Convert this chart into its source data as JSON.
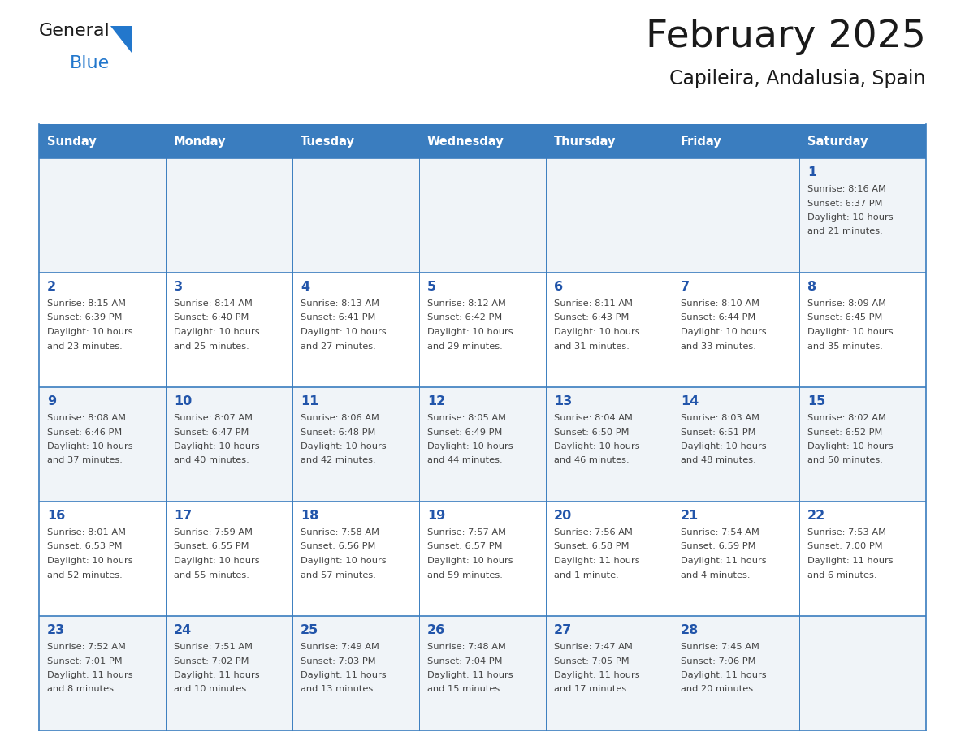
{
  "title": "February 2025",
  "subtitle": "Capileira, Andalusia, Spain",
  "header_bg": "#3a7dbf",
  "header_text_color": "#ffffff",
  "cell_bg_odd": "#f0f4f8",
  "cell_bg_even": "#ffffff",
  "grid_color": "#3a7dbf",
  "day_num_color": "#2255aa",
  "text_color": "#444444",
  "days_of_week": [
    "Sunday",
    "Monday",
    "Tuesday",
    "Wednesday",
    "Thursday",
    "Friday",
    "Saturday"
  ],
  "calendar_data": [
    [
      null,
      null,
      null,
      null,
      null,
      null,
      {
        "day": 1,
        "sunrise": "8:16 AM",
        "sunset": "6:37 PM",
        "daylight": "10 hours",
        "daylight2": "and 21 minutes."
      }
    ],
    [
      {
        "day": 2,
        "sunrise": "8:15 AM",
        "sunset": "6:39 PM",
        "daylight": "10 hours",
        "daylight2": "and 23 minutes."
      },
      {
        "day": 3,
        "sunrise": "8:14 AM",
        "sunset": "6:40 PM",
        "daylight": "10 hours",
        "daylight2": "and 25 minutes."
      },
      {
        "day": 4,
        "sunrise": "8:13 AM",
        "sunset": "6:41 PM",
        "daylight": "10 hours",
        "daylight2": "and 27 minutes."
      },
      {
        "day": 5,
        "sunrise": "8:12 AM",
        "sunset": "6:42 PM",
        "daylight": "10 hours",
        "daylight2": "and 29 minutes."
      },
      {
        "day": 6,
        "sunrise": "8:11 AM",
        "sunset": "6:43 PM",
        "daylight": "10 hours",
        "daylight2": "and 31 minutes."
      },
      {
        "day": 7,
        "sunrise": "8:10 AM",
        "sunset": "6:44 PM",
        "daylight": "10 hours",
        "daylight2": "and 33 minutes."
      },
      {
        "day": 8,
        "sunrise": "8:09 AM",
        "sunset": "6:45 PM",
        "daylight": "10 hours",
        "daylight2": "and 35 minutes."
      }
    ],
    [
      {
        "day": 9,
        "sunrise": "8:08 AM",
        "sunset": "6:46 PM",
        "daylight": "10 hours",
        "daylight2": "and 37 minutes."
      },
      {
        "day": 10,
        "sunrise": "8:07 AM",
        "sunset": "6:47 PM",
        "daylight": "10 hours",
        "daylight2": "and 40 minutes."
      },
      {
        "day": 11,
        "sunrise": "8:06 AM",
        "sunset": "6:48 PM",
        "daylight": "10 hours",
        "daylight2": "and 42 minutes."
      },
      {
        "day": 12,
        "sunrise": "8:05 AM",
        "sunset": "6:49 PM",
        "daylight": "10 hours",
        "daylight2": "and 44 minutes."
      },
      {
        "day": 13,
        "sunrise": "8:04 AM",
        "sunset": "6:50 PM",
        "daylight": "10 hours",
        "daylight2": "and 46 minutes."
      },
      {
        "day": 14,
        "sunrise": "8:03 AM",
        "sunset": "6:51 PM",
        "daylight": "10 hours",
        "daylight2": "and 48 minutes."
      },
      {
        "day": 15,
        "sunrise": "8:02 AM",
        "sunset": "6:52 PM",
        "daylight": "10 hours",
        "daylight2": "and 50 minutes."
      }
    ],
    [
      {
        "day": 16,
        "sunrise": "8:01 AM",
        "sunset": "6:53 PM",
        "daylight": "10 hours",
        "daylight2": "and 52 minutes."
      },
      {
        "day": 17,
        "sunrise": "7:59 AM",
        "sunset": "6:55 PM",
        "daylight": "10 hours",
        "daylight2": "and 55 minutes."
      },
      {
        "day": 18,
        "sunrise": "7:58 AM",
        "sunset": "6:56 PM",
        "daylight": "10 hours",
        "daylight2": "and 57 minutes."
      },
      {
        "day": 19,
        "sunrise": "7:57 AM",
        "sunset": "6:57 PM",
        "daylight": "10 hours",
        "daylight2": "and 59 minutes."
      },
      {
        "day": 20,
        "sunrise": "7:56 AM",
        "sunset": "6:58 PM",
        "daylight": "11 hours",
        "daylight2": "and 1 minute."
      },
      {
        "day": 21,
        "sunrise": "7:54 AM",
        "sunset": "6:59 PM",
        "daylight": "11 hours",
        "daylight2": "and 4 minutes."
      },
      {
        "day": 22,
        "sunrise": "7:53 AM",
        "sunset": "7:00 PM",
        "daylight": "11 hours",
        "daylight2": "and 6 minutes."
      }
    ],
    [
      {
        "day": 23,
        "sunrise": "7:52 AM",
        "sunset": "7:01 PM",
        "daylight": "11 hours",
        "daylight2": "and 8 minutes."
      },
      {
        "day": 24,
        "sunrise": "7:51 AM",
        "sunset": "7:02 PM",
        "daylight": "11 hours",
        "daylight2": "and 10 minutes."
      },
      {
        "day": 25,
        "sunrise": "7:49 AM",
        "sunset": "7:03 PM",
        "daylight": "11 hours",
        "daylight2": "and 13 minutes."
      },
      {
        "day": 26,
        "sunrise": "7:48 AM",
        "sunset": "7:04 PM",
        "daylight": "11 hours",
        "daylight2": "and 15 minutes."
      },
      {
        "day": 27,
        "sunrise": "7:47 AM",
        "sunset": "7:05 PM",
        "daylight": "11 hours",
        "daylight2": "and 17 minutes."
      },
      {
        "day": 28,
        "sunrise": "7:45 AM",
        "sunset": "7:06 PM",
        "daylight": "11 hours",
        "daylight2": "and 20 minutes."
      },
      null
    ]
  ]
}
